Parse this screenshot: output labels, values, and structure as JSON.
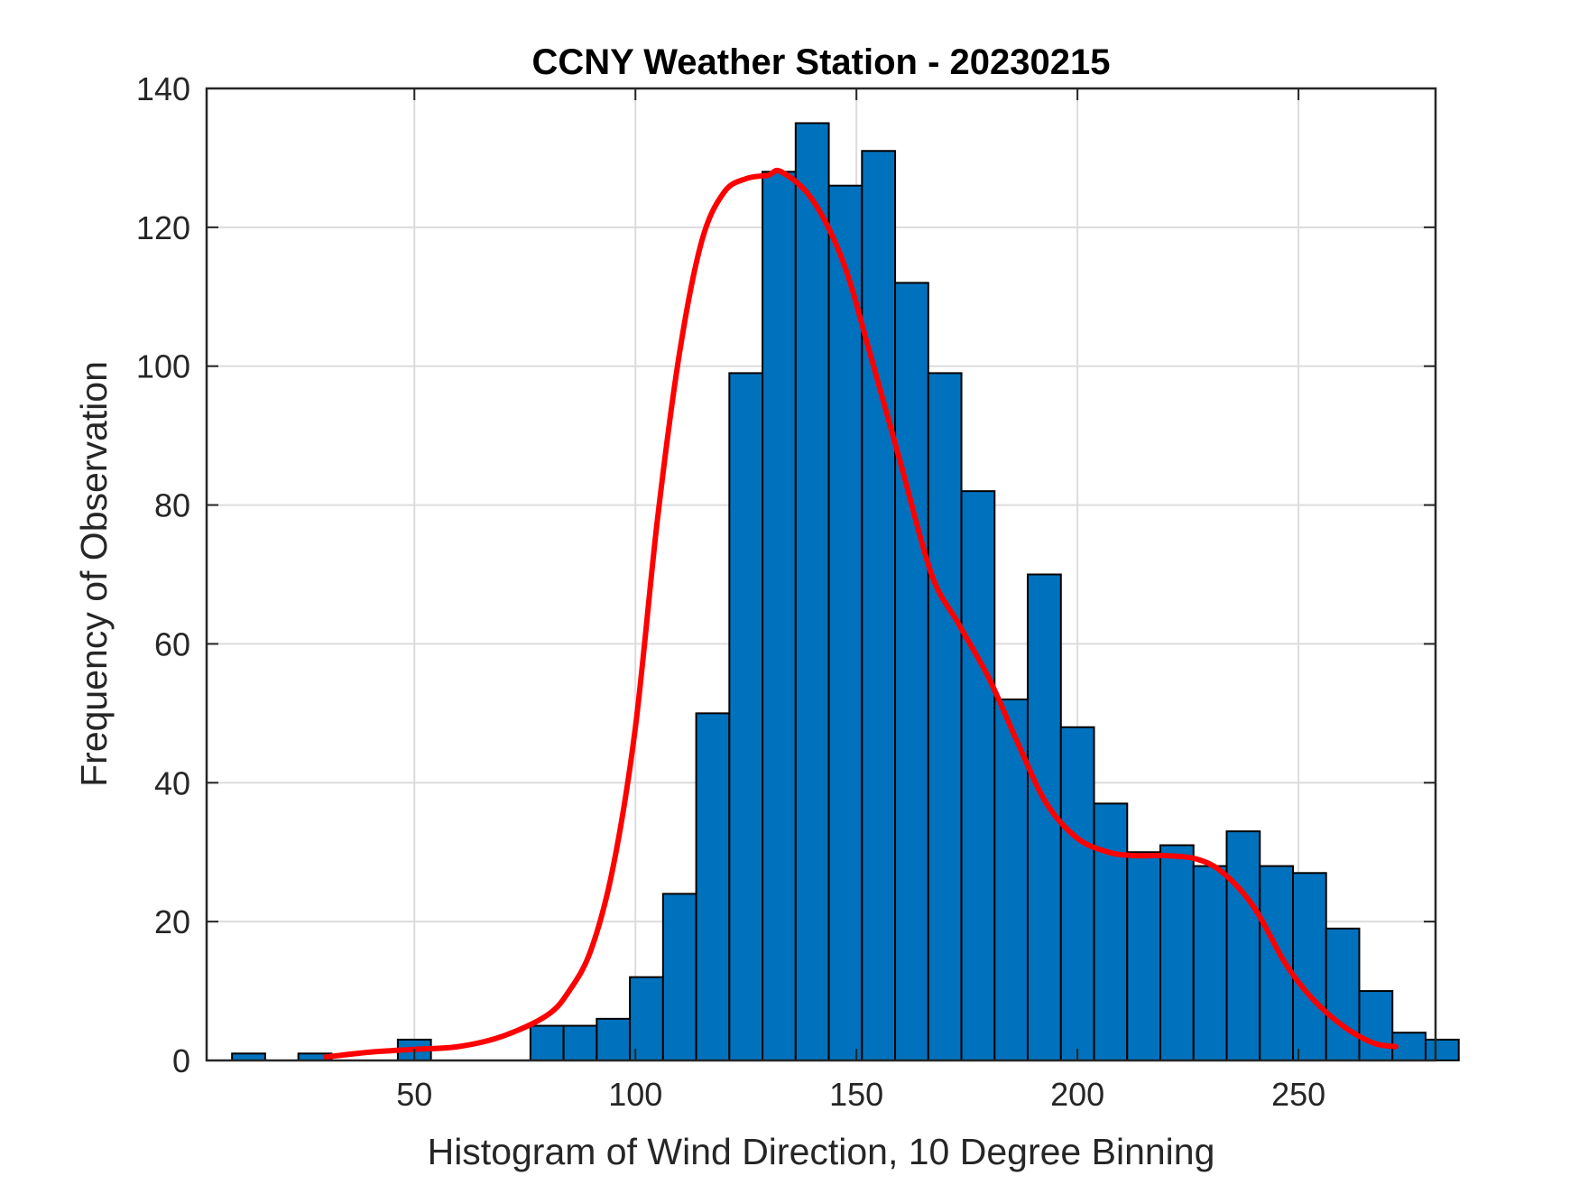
{
  "chart_data": {
    "type": "bar",
    "title": "CCNY Weather Station - 20230215",
    "xlabel": "Histogram of Wind Direction, 10 Degree Binning",
    "ylabel": "Frequency of Observation",
    "xlim": [
      3,
      281
    ],
    "ylim": [
      0,
      140
    ],
    "xticks": [
      50,
      100,
      150,
      200,
      250
    ],
    "yticks": [
      0,
      20,
      40,
      60,
      80,
      100,
      120,
      140
    ],
    "grid": true,
    "bin_width": 7.5,
    "bin_start": 8.75,
    "counts": [
      1,
      0,
      1,
      0,
      0,
      3,
      0,
      0,
      0,
      5,
      5,
      6,
      12,
      24,
      50,
      99,
      128,
      135,
      126,
      131,
      112,
      99,
      82,
      52,
      70,
      48,
      37,
      30,
      31,
      28,
      33,
      28,
      27,
      19,
      10,
      4,
      3
    ],
    "bar_color": "#0072BD",
    "fit_curve": {
      "color": "#FF0000",
      "x": [
        30,
        40,
        50,
        60,
        70,
        80,
        85,
        90,
        95,
        100,
        105,
        110,
        115,
        120,
        125,
        130,
        133,
        140,
        147,
        153,
        160,
        167,
        173,
        180,
        187,
        193,
        200,
        207,
        213,
        220,
        227,
        233,
        240,
        247,
        253,
        260,
        267,
        272
      ],
      "y": [
        0.5,
        1.2,
        1.6,
        2,
        3.5,
        6.5,
        10,
        16,
        28,
        48,
        78,
        102,
        118,
        125,
        127,
        127.5,
        128,
        124,
        115,
        102,
        86,
        70,
        63,
        55,
        45,
        37,
        32,
        30,
        29.5,
        29.5,
        29,
        27,
        22,
        14,
        9,
        5,
        2.5,
        2
      ]
    }
  }
}
